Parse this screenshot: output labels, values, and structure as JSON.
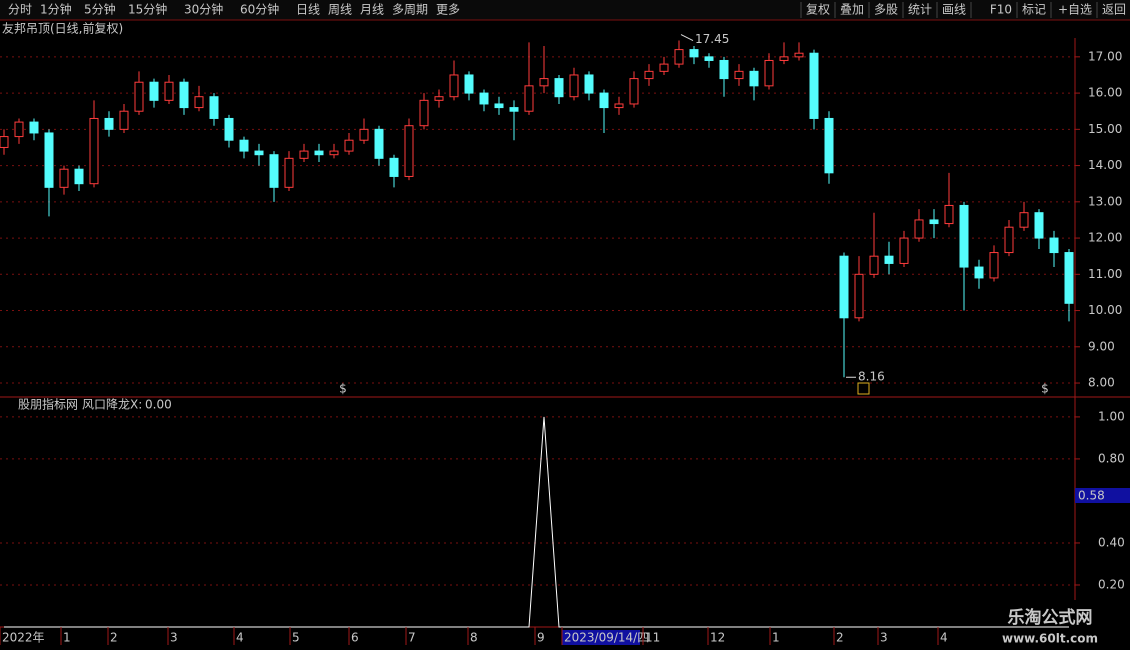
{
  "toolbar": {
    "left": [
      "分时",
      "1分钟",
      "5分钟",
      "15分钟",
      "30分钟",
      "60分钟",
      "日线",
      "周线",
      "月线",
      "多周期",
      "更多"
    ],
    "right": [
      "复权",
      "叠加",
      "多股",
      "统计",
      "画线",
      "F10",
      "标记",
      "+自选",
      "返回"
    ]
  },
  "chart_data": {
    "type": "candlestick",
    "title": "友邦吊顶(日线,前复权)",
    "up_color": "#ff3c3c",
    "down_color": "#54fcfc",
    "grid": true,
    "ylim": [
      7.67,
      17.52
    ],
    "yticks": [
      {
        "value": 8,
        "label": "8.00"
      },
      {
        "value": 9,
        "label": "9.00"
      },
      {
        "value": 10,
        "label": "10.00"
      },
      {
        "value": 11,
        "label": "11.00"
      },
      {
        "value": 12,
        "label": "12.00"
      },
      {
        "value": 13,
        "label": "13.00"
      },
      {
        "value": 14,
        "label": "14.00"
      },
      {
        "value": 15,
        "label": "15.00"
      },
      {
        "value": 16,
        "label": "16.00"
      },
      {
        "value": 17,
        "label": "17.00"
      }
    ],
    "candles": [
      [
        14.5,
        15.0,
        14.3,
        14.8
      ],
      [
        14.8,
        15.3,
        14.6,
        15.2
      ],
      [
        15.2,
        15.3,
        14.7,
        14.9
      ],
      [
        14.9,
        15.0,
        12.6,
        13.4
      ],
      [
        13.4,
        14.0,
        13.2,
        13.9
      ],
      [
        13.9,
        14.0,
        13.3,
        13.5
      ],
      [
        13.5,
        15.8,
        13.4,
        15.3
      ],
      [
        15.3,
        15.5,
        14.8,
        15.0
      ],
      [
        15.0,
        15.7,
        14.9,
        15.5
      ],
      [
        15.5,
        16.6,
        15.4,
        16.3
      ],
      [
        16.3,
        16.4,
        15.6,
        15.8
      ],
      [
        15.8,
        16.5,
        15.7,
        16.3
      ],
      [
        16.3,
        16.4,
        15.4,
        15.6
      ],
      [
        15.6,
        16.2,
        15.5,
        15.9
      ],
      [
        15.9,
        16.0,
        15.1,
        15.3
      ],
      [
        15.3,
        15.4,
        14.5,
        14.7
      ],
      [
        14.7,
        14.8,
        14.2,
        14.4
      ],
      [
        14.4,
        14.6,
        14.0,
        14.3
      ],
      [
        14.3,
        14.4,
        13.0,
        13.4
      ],
      [
        13.4,
        14.4,
        13.3,
        14.2
      ],
      [
        14.2,
        14.6,
        14.1,
        14.4
      ],
      [
        14.4,
        14.6,
        14.1,
        14.3
      ],
      [
        14.3,
        14.6,
        14.2,
        14.4
      ],
      [
        14.4,
        14.9,
        14.3,
        14.7
      ],
      [
        14.7,
        15.3,
        14.6,
        15.0
      ],
      [
        15.0,
        15.1,
        14.0,
        14.2
      ],
      [
        14.2,
        14.3,
        13.4,
        13.7
      ],
      [
        13.7,
        15.3,
        13.6,
        15.1
      ],
      [
        15.1,
        16.0,
        15.0,
        15.8
      ],
      [
        15.8,
        16.1,
        15.6,
        15.9
      ],
      [
        15.9,
        16.9,
        15.8,
        16.5
      ],
      [
        16.5,
        16.6,
        15.8,
        16.0
      ],
      [
        16.0,
        16.1,
        15.5,
        15.7
      ],
      [
        15.7,
        15.9,
        15.4,
        15.6
      ],
      [
        15.6,
        15.8,
        14.7,
        15.5
      ],
      [
        15.5,
        17.4,
        15.4,
        16.2
      ],
      [
        16.2,
        17.3,
        16.0,
        16.4
      ],
      [
        16.4,
        16.5,
        15.7,
        15.9
      ],
      [
        15.9,
        16.7,
        15.8,
        16.5
      ],
      [
        16.5,
        16.6,
        15.8,
        16.0
      ],
      [
        16.0,
        16.1,
        14.9,
        15.6
      ],
      [
        15.6,
        15.9,
        15.4,
        15.7
      ],
      [
        15.7,
        16.6,
        15.6,
        16.4
      ],
      [
        16.4,
        16.8,
        16.2,
        16.6
      ],
      [
        16.6,
        17.0,
        16.5,
        16.8
      ],
      [
        16.8,
        17.45,
        16.7,
        17.2
      ],
      [
        17.2,
        17.3,
        16.8,
        17.0
      ],
      [
        17.0,
        17.1,
        16.7,
        16.9
      ],
      [
        16.9,
        17.0,
        15.9,
        16.4
      ],
      [
        16.4,
        16.8,
        16.2,
        16.6
      ],
      [
        16.6,
        16.7,
        15.8,
        16.2
      ],
      [
        16.2,
        17.1,
        16.1,
        16.9
      ],
      [
        16.9,
        17.4,
        16.8,
        17.0
      ],
      [
        17.0,
        17.4,
        16.9,
        17.1
      ],
      [
        17.1,
        17.2,
        15.0,
        15.3
      ],
      [
        15.3,
        15.5,
        13.5,
        13.8
      ],
      [
        11.5,
        11.6,
        8.16,
        9.8
      ],
      [
        9.8,
        11.5,
        9.7,
        11.0
      ],
      [
        11.0,
        12.7,
        10.9,
        11.5
      ],
      [
        11.5,
        11.9,
        11.0,
        11.3
      ],
      [
        11.3,
        12.2,
        11.2,
        12.0
      ],
      [
        12.0,
        12.8,
        11.9,
        12.5
      ],
      [
        12.5,
        12.8,
        12.0,
        12.4
      ],
      [
        12.4,
        13.8,
        12.3,
        12.9
      ],
      [
        12.9,
        13.0,
        10.0,
        11.2
      ],
      [
        11.2,
        11.4,
        10.6,
        10.9
      ],
      [
        10.9,
        11.8,
        10.8,
        11.6
      ],
      [
        11.6,
        12.5,
        11.5,
        12.3
      ],
      [
        12.3,
        13.0,
        12.2,
        12.7
      ],
      [
        12.7,
        12.8,
        11.7,
        12.0
      ],
      [
        12.0,
        12.2,
        11.2,
        11.6
      ],
      [
        11.6,
        11.7,
        9.7,
        10.2
      ]
    ],
    "high_label": 17.45,
    "low_label": 8.16,
    "event_marker": "$"
  },
  "indicator": {
    "type": "line",
    "title": "股朋指标网",
    "name": "风口降龙X:",
    "current": "0.00",
    "color": "#ffffff",
    "ylim": [
      0,
      1.09
    ],
    "yticks": [
      {
        "value": 0.2,
        "label": "0.20"
      },
      {
        "value": 0.4,
        "label": "0.40"
      },
      {
        "value": 0.8,
        "label": "0.80"
      },
      {
        "value": 1,
        "label": "1.00"
      }
    ],
    "cursor_label": "0.58",
    "values": [
      0,
      0,
      0,
      0,
      0,
      0,
      0,
      0,
      0,
      0,
      0,
      0,
      0,
      0,
      0,
      0,
      0,
      0,
      0,
      0,
      0,
      0,
      0,
      0,
      0,
      0,
      0,
      0,
      0,
      0,
      0,
      0,
      0,
      0,
      0,
      0,
      1,
      0,
      0,
      0,
      0,
      0,
      0,
      0,
      0,
      0,
      0,
      0,
      0,
      0,
      0,
      0,
      0,
      0,
      0,
      0,
      0,
      0,
      0,
      0,
      0,
      0,
      0,
      0,
      0,
      0,
      0,
      0,
      0,
      0,
      0,
      0
    ]
  },
  "x_axis": [
    "2022年",
    "1",
    "2",
    "3",
    "4",
    "5",
    "6",
    "7",
    "8",
    "9",
    "2023/09/14/四",
    "11",
    "12",
    "1",
    "2",
    "3",
    "4"
  ],
  "watermark": {
    "name": "乐淘公式网",
    "url": "www.60lt.com"
  }
}
